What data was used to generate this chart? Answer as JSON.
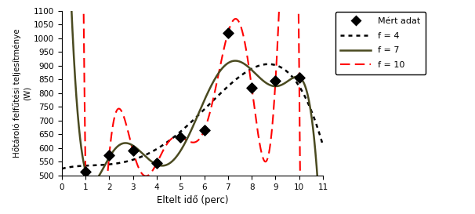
{
  "measured_x": [
    1,
    2,
    3,
    4,
    5,
    6,
    7,
    8,
    9,
    10
  ],
  "measured_y": [
    515,
    575,
    590,
    545,
    640,
    665,
    1020,
    820,
    845,
    855
  ],
  "xlim": [
    0,
    11
  ],
  "ylim": [
    500,
    1100
  ],
  "yticks": [
    500,
    550,
    600,
    650,
    700,
    750,
    800,
    850,
    900,
    950,
    1000,
    1050,
    1100
  ],
  "xticks": [
    0,
    1,
    2,
    3,
    4,
    5,
    6,
    7,
    8,
    9,
    10,
    11
  ],
  "xlabel": "Eltelt idő (perc)",
  "ylabel": "Hőtároló felfűtési teljesítménye\n(W)",
  "bg_color": "#ffffff",
  "line_f4_color": "#000000",
  "line_f7_color": "#4a4a20",
  "line_f10_color": "#ff0000",
  "marker_color": "#000000",
  "legend_labels": [
    "Mért adat",
    "f = 4",
    "f = 7",
    "f = 10"
  ],
  "poly_deg_f4": 4,
  "poly_deg_f7": 7,
  "poly_deg_f10": 10
}
